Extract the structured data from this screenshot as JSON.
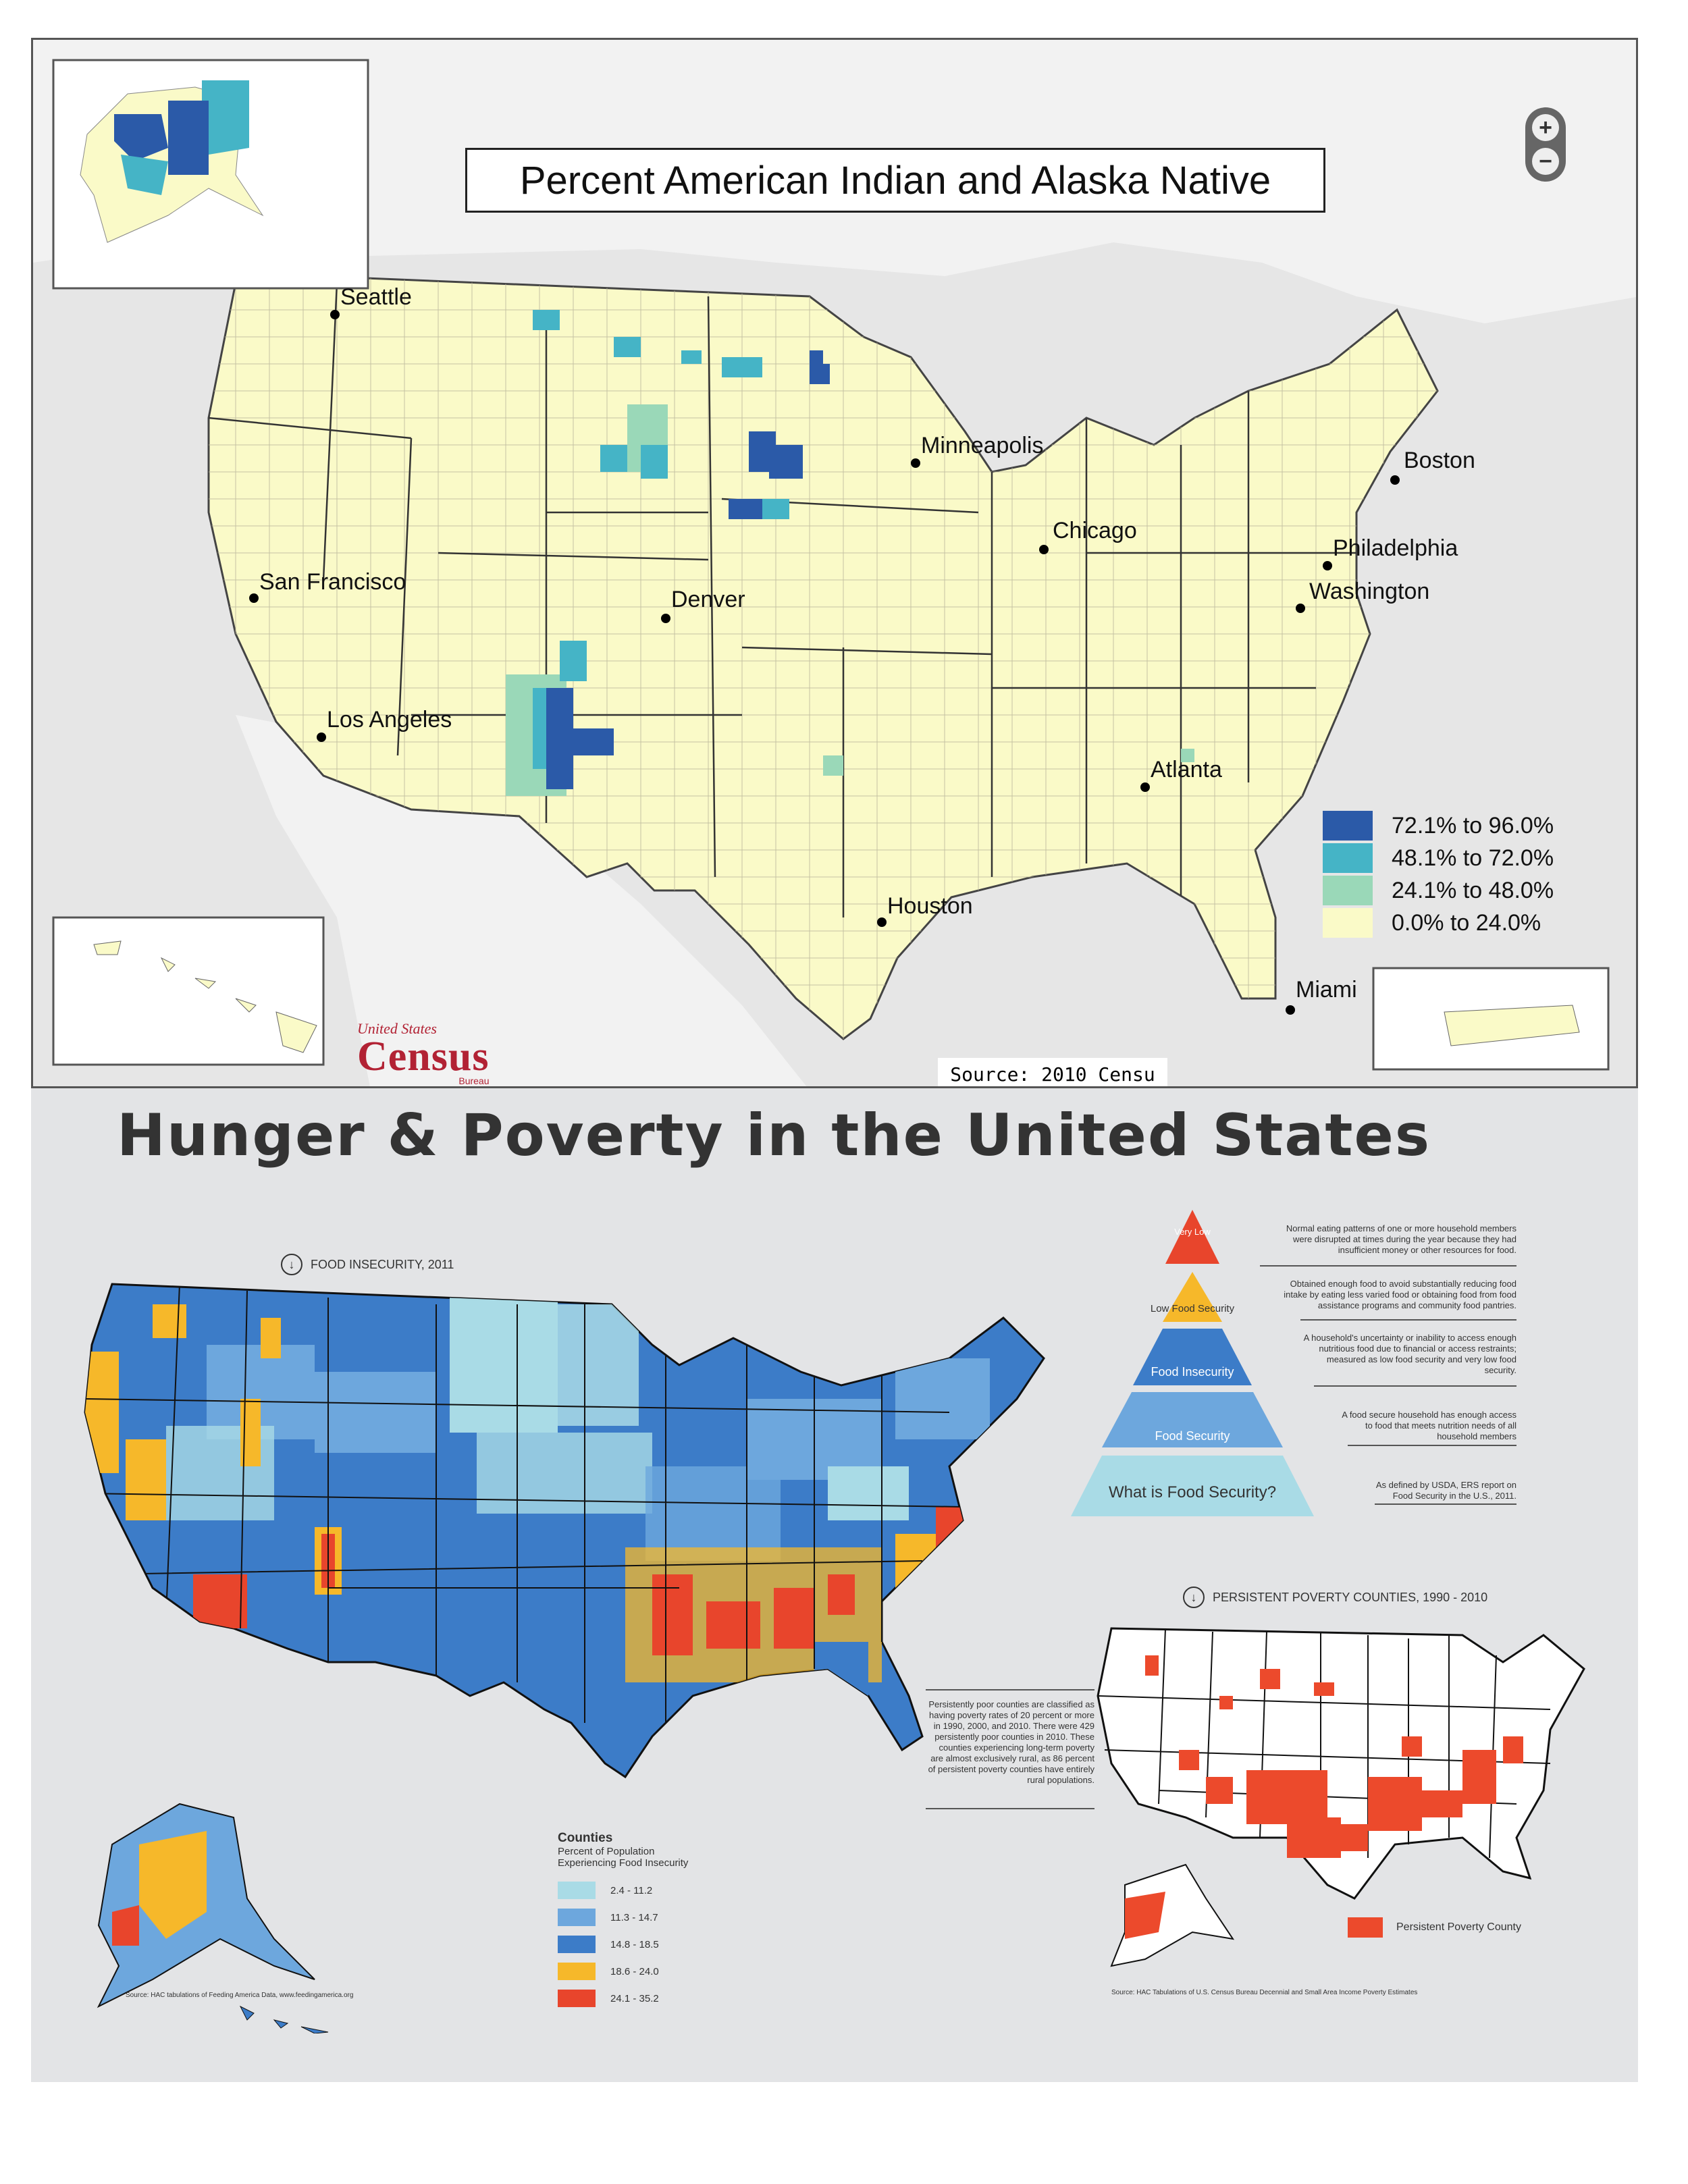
{
  "top_map": {
    "title": "Percent American Indian and Alaska Native",
    "zoom_in": "+",
    "zoom_out": "−",
    "cities": [
      "Seattle",
      "Minneapolis",
      "Boston",
      "Chicago",
      "Philadelphia",
      "San Francisco",
      "Denver",
      "Washington",
      "Los Angeles",
      "Atlanta",
      "Houston",
      "Miami"
    ],
    "legend": [
      {
        "label": "72.1% to 96.0%",
        "color": "#2b5aa8"
      },
      {
        "label": "48.1% to 72.0%",
        "color": "#45b4c6"
      },
      {
        "label": "24.1% to 48.0%",
        "color": "#9ad8b8"
      },
      {
        "label": "0.0% to 24.0%",
        "color": "#fafac8"
      }
    ],
    "logo": {
      "line1": "United States",
      "line2": "Census",
      "line3": "Bureau"
    },
    "source": "Source: 2010 Censu"
  },
  "bottom": {
    "title": "Hunger & Poverty in the United States",
    "food_insecurity_heading": "FOOD INSECURITY, 2011",
    "pyramid": {
      "levels": [
        "Very Low",
        "Low Food Security",
        "Food Insecurity",
        "Food Security",
        "What is Food Security?"
      ],
      "colors": [
        "#e8452c",
        "#f6b82a",
        "#3c7cc8",
        "#6da7dd",
        "#a9dbe6"
      ],
      "descriptions": [
        "Normal eating patterns of one or more household members were disrupted at times during the year because they had insufficient money or other resources for food.",
        "Obtained enough food to avoid substantially reducing food intake by eating less varied food or obtaining food from food assistance programs and community food pantries.",
        "A household's uncertainty or inability to access enough nutritious food due to financial or access restraints; measured as low food security and very low food security.",
        "A food secure household has enough access to food that meets nutrition needs of all household members",
        "As defined by USDA, ERS report on Food Security in the U.S., 2011."
      ]
    },
    "persistent_poverty_heading": "PERSISTENT POVERTY COUNTIES, 1990 - 2010",
    "persistent_poverty_text": "Persistently poor counties are classified as having poverty rates of 20 percent or more in 1990, 2000, and 2010. There were 429 persistently poor counties in 2010. These counties experiencing long-term poverty are almost exclusively rural, as 86 percent of persistent poverty counties have entirely rural populations.",
    "fi_legend": {
      "title": "Counties",
      "subtitle1": "Percent of Population",
      "subtitle2": "Experiencing Food Insecurity",
      "items": [
        {
          "label": "2.4 - 11.2",
          "color": "#a9dbe6"
        },
        {
          "label": "11.3 - 14.7",
          "color": "#6da7dd"
        },
        {
          "label": "14.8 - 18.5",
          "color": "#3c7cc8"
        },
        {
          "label": "18.6 - 24.0",
          "color": "#f6b82a"
        },
        {
          "label": "24.1 - 35.2",
          "color": "#e8452c"
        }
      ]
    },
    "pp_legend_label": "Persistent Poverty County",
    "pp_color": "#ec4a2c",
    "source_left": "Source: HAC tabulations of Feeding America Data, www.feedingamerica.org",
    "source_right": "Source: HAC Tabulations of U.S. Census Bureau Decennial and Small Area Income Poverty Estimates"
  }
}
